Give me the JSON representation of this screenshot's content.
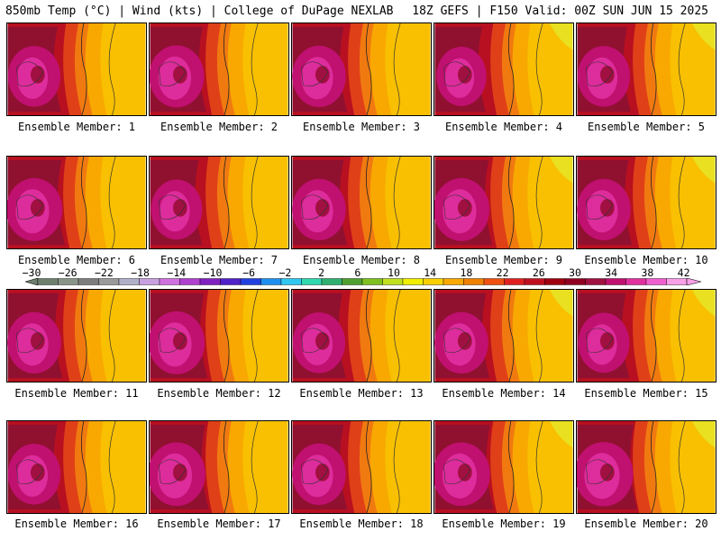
{
  "header": {
    "left": "850mb Temp (°C) | Wind (kts) | College of DuPage NEXLAB",
    "right": "18Z GEFS | F150 Valid: 00Z SUN JUN 15 2025"
  },
  "panels": [
    {
      "label": "Ensemble Member: 1",
      "heat": 0.55
    },
    {
      "label": "Ensemble Member: 2",
      "heat": 0.65
    },
    {
      "label": "Ensemble Member: 3",
      "heat": 0.6
    },
    {
      "label": "Ensemble Member: 4",
      "heat": 0.45
    },
    {
      "label": "Ensemble Member: 5",
      "heat": 0.55
    },
    {
      "label": "Ensemble Member: 6",
      "heat": 0.7
    },
    {
      "label": "Ensemble Member: 7",
      "heat": 0.5
    },
    {
      "label": "Ensemble Member: 8",
      "heat": 0.6
    },
    {
      "label": "Ensemble Member: 9",
      "heat": 0.7
    },
    {
      "label": "Ensemble Member: 10",
      "heat": 0.6
    },
    {
      "label": "Ensemble Member: 11",
      "heat": 0.6
    },
    {
      "label": "Ensemble Member: 12",
      "heat": 0.7
    },
    {
      "label": "Ensemble Member: 13",
      "heat": 0.55
    },
    {
      "label": "Ensemble Member: 14",
      "heat": 0.6
    },
    {
      "label": "Ensemble Member: 15",
      "heat": 0.5
    },
    {
      "label": "Ensemble Member: 16",
      "heat": 0.55
    },
    {
      "label": "Ensemble Member: 17",
      "heat": 0.75
    },
    {
      "label": "Ensemble Member: 18",
      "heat": 0.6
    },
    {
      "label": "Ensemble Member: 19",
      "heat": 0.75
    },
    {
      "label": "Ensemble Member: 20",
      "heat": 0.8
    }
  ],
  "colorbar": {
    "ticks": [
      "−30",
      "−26",
      "−22",
      "−18",
      "−14",
      "−10",
      "−6",
      "−2",
      "2",
      "6",
      "10",
      "14",
      "18",
      "22",
      "26",
      "30",
      "34",
      "38",
      "42"
    ],
    "colors": [
      "#6e7f6e",
      "#8a958a",
      "#7d7d7d",
      "#9a9a9a",
      "#b0b0c8",
      "#c8a0e0",
      "#d070e0",
      "#b040d0",
      "#8020c0",
      "#5020c8",
      "#2040e0",
      "#2090f0",
      "#30c8f0",
      "#30d8b0",
      "#30b070",
      "#50a030",
      "#80c020",
      "#c0e020",
      "#f0f000",
      "#f8d000",
      "#f8a800",
      "#f08000",
      "#f05010",
      "#e02020",
      "#c01020",
      "#a00010",
      "#900020",
      "#a01040",
      "#c01070",
      "#e030a0",
      "#f060d0",
      "#f8a0e8"
    ]
  }
}
